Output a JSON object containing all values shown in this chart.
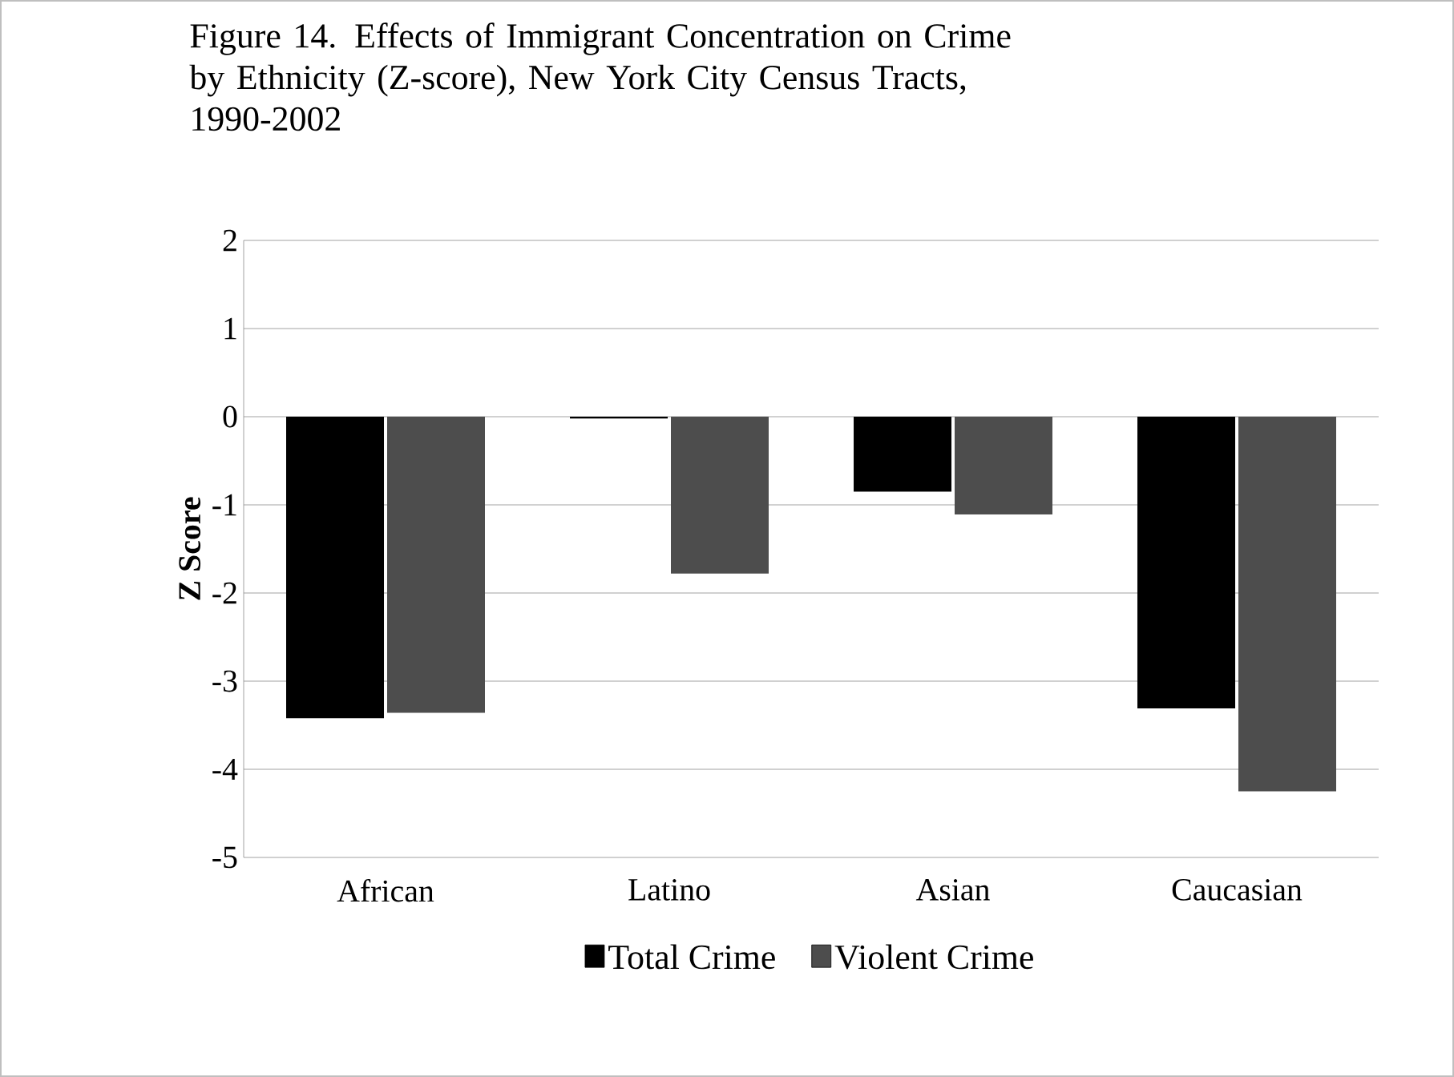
{
  "chart_data": {
    "type": "bar",
    "title": "Figure 14.  Effects of Immigrant Concentration on Crime by Ethnicity (Z-score), New York City Census Tracts, 1990-2002",
    "ylabel": "Z Score",
    "categories": [
      "African",
      "Latino",
      "Asian",
      "Caucasian"
    ],
    "series": [
      {
        "name": "Total Crime",
        "color": "#000000",
        "values": [
          -3.42,
          -0.02,
          -0.85,
          -3.31
        ]
      },
      {
        "name": "Violent Crime",
        "color": "#4d4d4d",
        "values": [
          -3.36,
          -1.78,
          -1.11,
          -4.25
        ]
      }
    ],
    "ylim": [
      -5,
      2
    ],
    "yticks": [
      -5,
      -4,
      -3,
      -2,
      -1,
      0,
      1,
      2
    ],
    "grid": "y",
    "legend": "bottom"
  }
}
